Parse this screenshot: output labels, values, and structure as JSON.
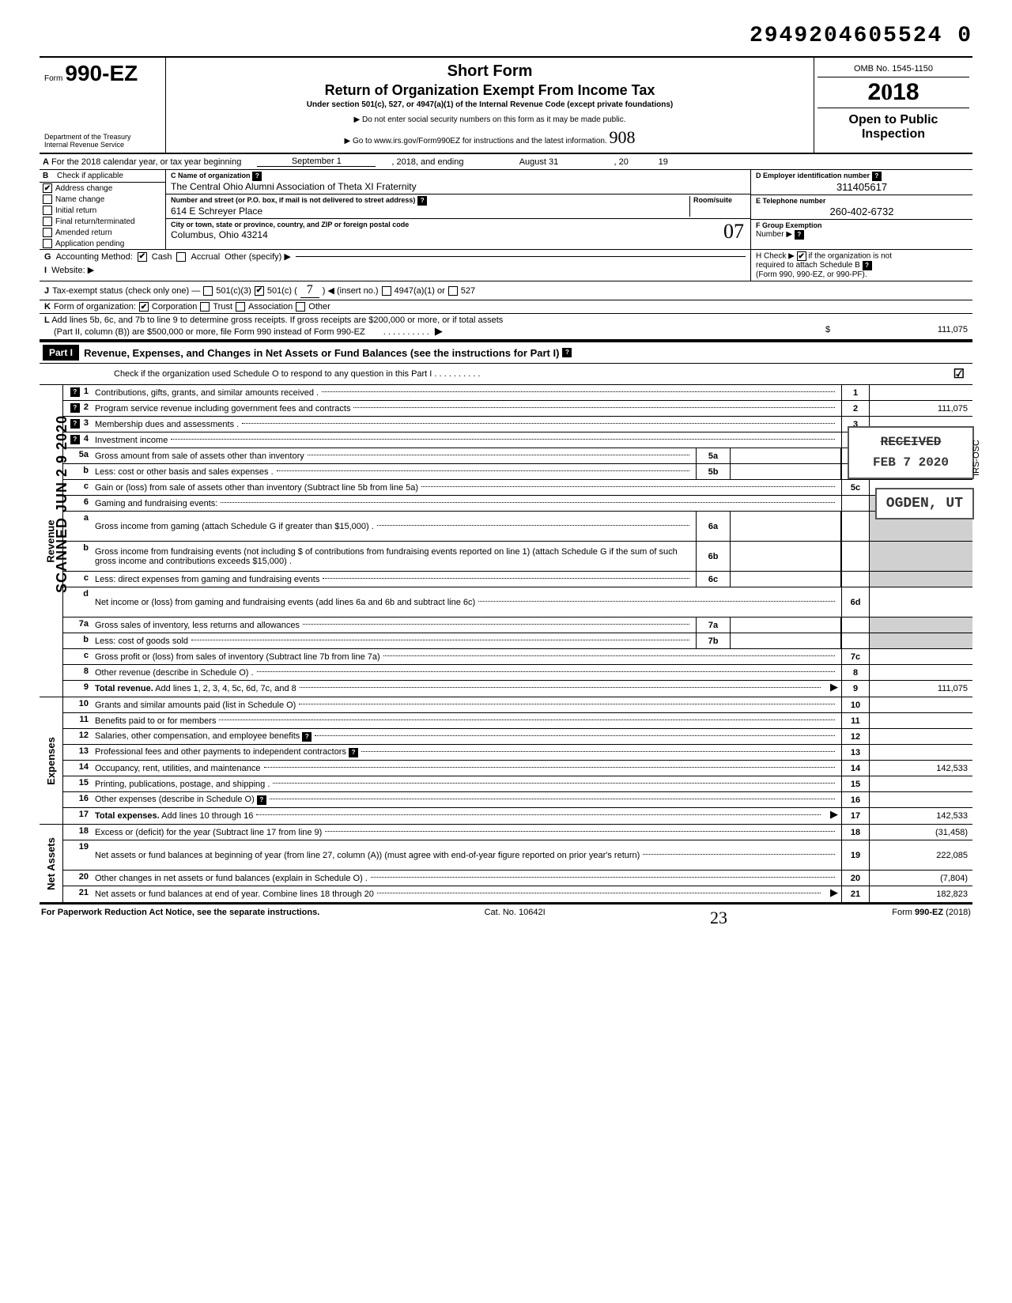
{
  "doc_number": "2949204605524 0",
  "header": {
    "form_prefix": "Form",
    "form_no": "990-EZ",
    "short_form": "Short Form",
    "title": "Return of Organization Exempt From Income Tax",
    "under": "Under section 501(c), 527, or 4947(a)(1) of the Internal Revenue Code (except private foundations)",
    "public": "▶ Do not enter social security numbers on this form as it may be made public.",
    "goto": "▶ Go to www.irs.gov/Form990EZ for instructions and the latest information.",
    "dept1": "Department of the Treasury",
    "dept2": "Internal Revenue Service",
    "omb": "OMB No. 1545-1150",
    "year": "2018",
    "open1": "Open to Public",
    "open2": "Inspection",
    "hand_908": "908"
  },
  "line_a": {
    "prefix_b": "A",
    "text1": "For the 2018 calendar year, or tax year beginning",
    "begin": "September 1",
    "text2": ", 2018, and ending",
    "end": "August 31",
    "text3": ", 20",
    "yr": "19"
  },
  "box_b": {
    "label": "B",
    "sub": "Check if applicable",
    "items": [
      {
        "label": "Address change",
        "checked": true
      },
      {
        "label": "Name change",
        "checked": false
      },
      {
        "label": "Initial return",
        "checked": false
      },
      {
        "label": "Final return/terminated",
        "checked": false
      },
      {
        "label": "Amended return",
        "checked": false
      },
      {
        "label": "Application pending",
        "checked": false
      }
    ]
  },
  "box_c": {
    "c_label": "C  Name of organization",
    "c_val": "The Central Ohio Alumni Association of Theta XI Fraternity",
    "addr_label": "Number and street (or P.O. box, if mail is not delivered to street address)",
    "room_label": "Room/suite",
    "addr_val": "614 E Schreyer Place",
    "city_label": "City or town, state or province, country, and ZIP or foreign postal code",
    "city_val": "Columbus, Ohio 43214",
    "hand_07": "07"
  },
  "box_d": {
    "label": "D Employer identification number",
    "val": "311405617"
  },
  "box_e": {
    "label": "E Telephone number",
    "val": "260-402-6732"
  },
  "box_f": {
    "label": "F Group Exemption",
    "sub": "Number ▶"
  },
  "row_g": {
    "label_b": "G",
    "label": "Accounting Method:",
    "cash": "Cash",
    "accrual": "Accrual",
    "other": "Other (specify) ▶"
  },
  "row_i": {
    "label_b": "I",
    "label": "Website: ▶"
  },
  "row_h": {
    "text1": "H Check ▶",
    "text2": "if the organization is not",
    "text3": "required to attach Schedule B",
    "text4": "(Form 990, 990-EZ, or 990-PF)."
  },
  "row_j": {
    "label_b": "J",
    "text": "Tax-exempt status (check only one) —",
    "c3": "501(c)(3)",
    "c": "501(c) (",
    "insert": ") ◀ (insert no.)",
    "a1": "4947(a)(1) or",
    "n527": "527",
    "hand7": "7"
  },
  "row_k": {
    "label_b": "K",
    "text": "Form of organization:",
    "corp": "Corporation",
    "trust": "Trust",
    "assoc": "Association",
    "other": "Other"
  },
  "row_l": {
    "label_b": "L",
    "text1": "Add lines 5b, 6c, and 7b to line 9 to determine gross receipts. If gross receipts are $200,000 or more, or if total assets",
    "text2": "(Part II, column (B)) are $500,000 or more, file Form 990 instead of Form 990-EZ",
    "dots": ". . . . . . . . . .",
    "arrow": "▶",
    "dollar": "$",
    "val": "111,075"
  },
  "part1": {
    "badge": "Part I",
    "title": "Revenue, Expenses, and Changes in Net Assets or Fund Balances (see the instructions for Part I)",
    "check_o": "Check if the organization used Schedule O to respond to any question in this Part I . . . . . . . . . ."
  },
  "stamps": {
    "received": "RECEIVED",
    "date": "FEB  7 2020",
    "ogden": "OGDEN, UT",
    "irs_osc": "IRS-OSC",
    "scanned": "SCANNED  JUN 2 9 2020"
  },
  "revenue": {
    "side": "Revenue",
    "lines": [
      {
        "num": "1",
        "text": "Contributions, gifts, grants, and similar amounts received .",
        "rnum": "1",
        "rval": "",
        "help": true
      },
      {
        "num": "2",
        "text": "Program service revenue including government fees and contracts",
        "rnum": "2",
        "rval": "111,075",
        "help": true
      },
      {
        "num": "3",
        "text": "Membership dues and assessments .",
        "rnum": "3",
        "rval": "",
        "help": true
      },
      {
        "num": "4",
        "text": "Investment income",
        "rnum": "4",
        "rval": "",
        "help": true
      },
      {
        "num": "5a",
        "text": "Gross amount from sale of assets other than inventory",
        "mid": "5a",
        "gray": true
      },
      {
        "num": "b",
        "text": "Less: cost or other basis and sales expenses .",
        "mid": "5b",
        "gray": true
      },
      {
        "num": "c",
        "text": "Gain or (loss) from sale of assets other than inventory (Subtract line 5b from line 5a)",
        "rnum": "5c",
        "rval": ""
      },
      {
        "num": "6",
        "text": "Gaming and fundraising events:",
        "gray": true,
        "noright": true
      },
      {
        "num": "a",
        "text": "Gross income from gaming (attach Schedule G if greater than $15,000) .",
        "mid": "6a",
        "gray": true,
        "tall": true
      },
      {
        "num": "b",
        "text": "Gross income from fundraising events (not including  $                       of contributions from fundraising events reported on line 1) (attach Schedule G if the sum of such gross income and contributions exceeds $15,000) .",
        "mid": "6b",
        "gray": true,
        "tall": true
      },
      {
        "num": "c",
        "text": "Less: direct expenses from gaming and fundraising events",
        "mid": "6c",
        "gray": true
      },
      {
        "num": "d",
        "text": "Net income or (loss) from gaming and fundraising events (add lines 6a and 6b and subtract line 6c)",
        "rnum": "6d",
        "rval": "",
        "tall": true
      },
      {
        "num": "7a",
        "text": "Gross sales of inventory, less returns and allowances",
        "mid": "7a",
        "gray": true
      },
      {
        "num": "b",
        "text": "Less: cost of goods sold",
        "mid": "7b",
        "gray": true
      },
      {
        "num": "c",
        "text": "Gross profit or (loss) from sales of inventory (Subtract line 7b from line 7a)",
        "rnum": "7c",
        "rval": ""
      },
      {
        "num": "8",
        "text": "Other revenue (describe in Schedule O) .",
        "rnum": "8",
        "rval": ""
      },
      {
        "num": "9",
        "text_b": "Total revenue.",
        "text": " Add lines 1, 2, 3, 4, 5c, 6d, 7c, and 8",
        "rnum": "9",
        "rval": "111,075",
        "arrow": true
      }
    ]
  },
  "expenses": {
    "side": "Expenses",
    "lines": [
      {
        "num": "10",
        "text": "Grants and similar amounts paid (list in Schedule O)",
        "rnum": "10",
        "rval": ""
      },
      {
        "num": "11",
        "text": "Benefits paid to or for members",
        "rnum": "11",
        "rval": ""
      },
      {
        "num": "12",
        "text": "Salaries, other compensation, and employee benefits",
        "rnum": "12",
        "rval": "",
        "help_end": true
      },
      {
        "num": "13",
        "text": "Professional fees and other payments to independent contractors",
        "rnum": "13",
        "rval": "",
        "help_end": true
      },
      {
        "num": "14",
        "text": "Occupancy, rent, utilities, and maintenance",
        "rnum": "14",
        "rval": "142,533"
      },
      {
        "num": "15",
        "text": "Printing, publications, postage, and shipping .",
        "rnum": "15",
        "rval": ""
      },
      {
        "num": "16",
        "text": "Other expenses (describe in Schedule O)",
        "rnum": "16",
        "rval": "",
        "help_end": true
      },
      {
        "num": "17",
        "text_b": "Total expenses.",
        "text": " Add lines 10 through 16",
        "rnum": "17",
        "rval": "142,533",
        "arrow": true
      }
    ]
  },
  "netassets": {
    "side": "Net Assets",
    "lines": [
      {
        "num": "18",
        "text": "Excess or (deficit) for the year (Subtract line 17 from line 9)",
        "rnum": "18",
        "rval": "(31,458)"
      },
      {
        "num": "19",
        "text": "Net assets or fund balances at beginning of year (from line 27, column (A)) (must agree with end-of-year figure reported on prior year's return)",
        "rnum": "19",
        "rval": "222,085",
        "tall": true
      },
      {
        "num": "20",
        "text": "Other changes in net assets or fund balances (explain in Schedule O) .",
        "rnum": "20",
        "rval": "(7,804)"
      },
      {
        "num": "21",
        "text": "Net assets or fund balances at end of year. Combine lines 18 through 20",
        "rnum": "21",
        "rval": "182,823",
        "arrow": true
      }
    ]
  },
  "footer": {
    "left": "For Paperwork Reduction Act Notice, see the separate instructions.",
    "mid": "Cat. No. 10642I",
    "hand": "23",
    "right": "Form 990-EZ (2018)"
  },
  "colors": {
    "black": "#000000",
    "gray_fill": "#d0d0d0",
    "white": "#ffffff"
  }
}
